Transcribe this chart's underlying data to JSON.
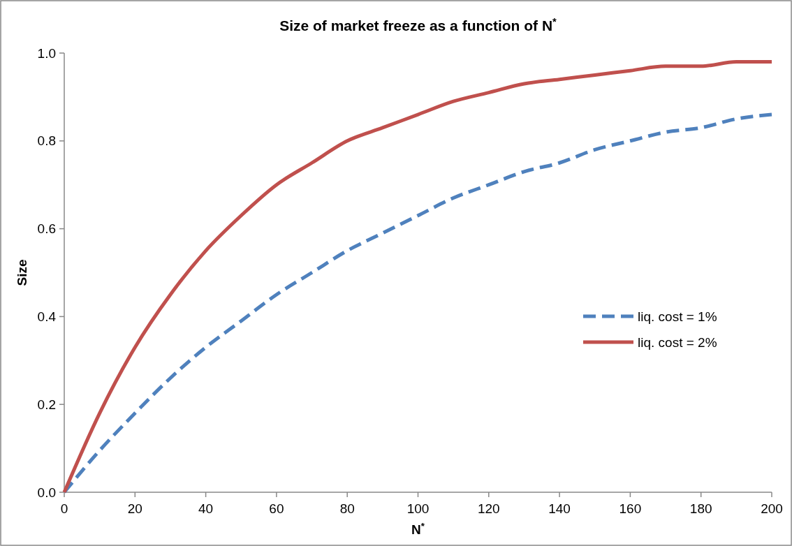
{
  "chart_data": {
    "type": "line",
    "title": "Size of market freeze as a function of N$^{*}$",
    "xlabel": "N$^{*}$",
    "ylabel": "Size",
    "x": [
      0,
      10,
      20,
      30,
      40,
      50,
      60,
      70,
      80,
      90,
      100,
      110,
      120,
      130,
      140,
      150,
      160,
      170,
      180,
      190,
      200
    ],
    "xlim": [
      0,
      200
    ],
    "xticks": [
      0,
      20,
      40,
      60,
      80,
      100,
      120,
      140,
      160,
      180,
      200
    ],
    "ylim": [
      0,
      1
    ],
    "yticks": [
      {
        "value": 0,
        "label": "0.0"
      },
      {
        "value": 0.2,
        "label": "0.2"
      },
      {
        "value": 0.4,
        "label": "0.4"
      },
      {
        "value": 0.6,
        "label": "0.6"
      },
      {
        "value": 0.8,
        "label": "0.8"
      },
      {
        "value": 1,
        "label": "1.0"
      }
    ],
    "grid": false,
    "legend": "right",
    "marker": "none",
    "series": [
      {
        "name": "liq. cost = 1%",
        "color": "#4f81bd",
        "line_style": "dashed",
        "values": [
          0,
          0.095,
          0.18,
          0.26,
          0.33,
          0.39,
          0.45,
          0.5,
          0.55,
          0.59,
          0.63,
          0.67,
          0.7,
          0.73,
          0.75,
          0.78,
          0.8,
          0.82,
          0.83,
          0.85,
          0.86
        ]
      },
      {
        "name": "liq. cost = 2%",
        "color": "#c0504d",
        "line_style": "solid",
        "values": [
          0,
          0.18,
          0.33,
          0.45,
          0.55,
          0.63,
          0.7,
          0.75,
          0.8,
          0.83,
          0.86,
          0.89,
          0.91,
          0.93,
          0.94,
          0.95,
          0.96,
          0.97,
          0.97,
          0.98,
          0.98
        ]
      }
    ]
  }
}
